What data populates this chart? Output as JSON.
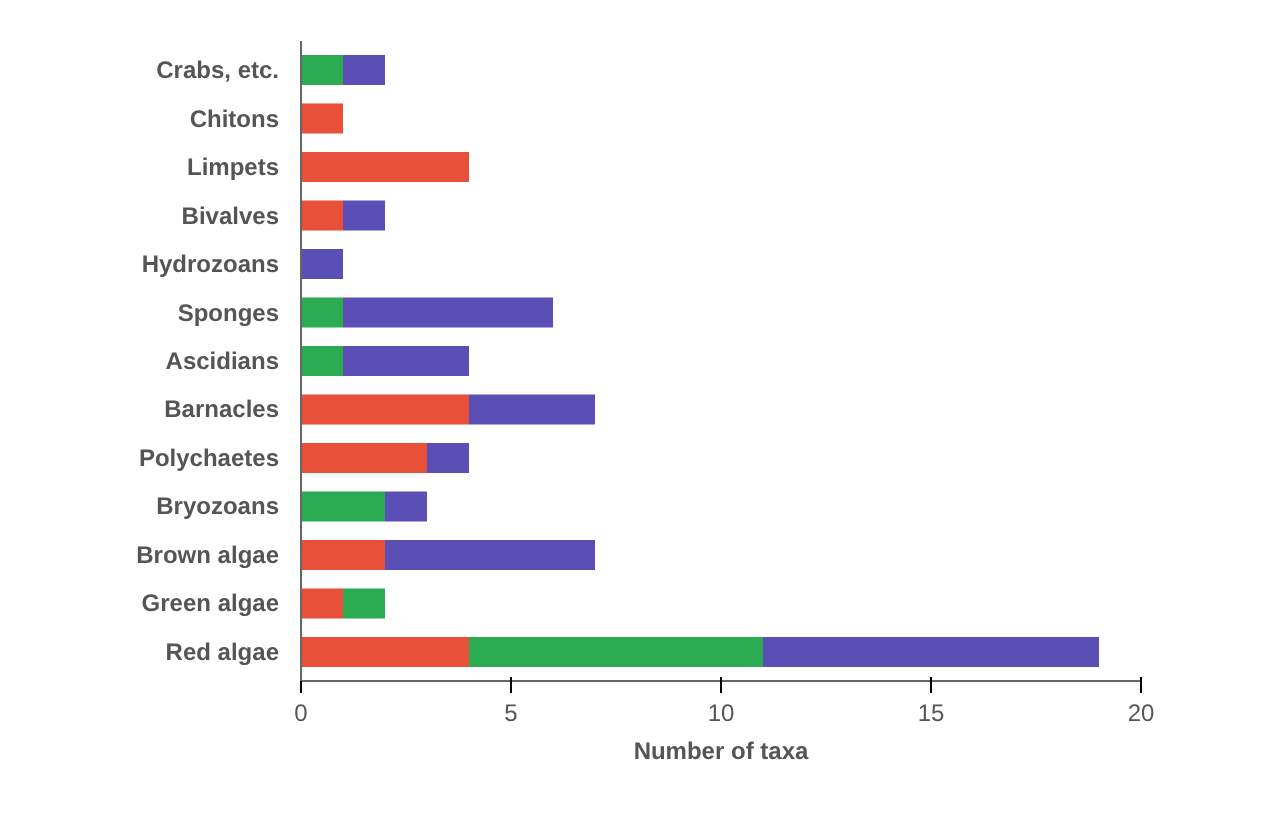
{
  "chart_data": {
    "type": "bar",
    "orientation": "horizontal",
    "stacked": true,
    "xlabel": "Number of taxa",
    "categories": [
      "Crabs, etc.",
      "Chitons",
      "Limpets",
      "Bivalves",
      "Hydrozoans",
      "Sponges",
      "Ascidians",
      "Barnacles",
      "Polychaetes",
      "Bryozoans",
      "Brown algae",
      "Green algae",
      "Red algae"
    ],
    "series": [
      {
        "color": "#e8503a",
        "values": [
          0,
          1,
          4,
          1,
          0,
          0,
          0,
          4,
          3,
          0,
          2,
          1,
          4
        ]
      },
      {
        "color": "#2bab52",
        "values": [
          1,
          0,
          0,
          0,
          0,
          1,
          1,
          0,
          0,
          2,
          0,
          1,
          7
        ]
      },
      {
        "color": "#5b4fb5",
        "values": [
          1,
          0,
          0,
          1,
          1,
          5,
          3,
          3,
          1,
          1,
          5,
          0,
          8
        ]
      }
    ],
    "xlim": [
      0,
      20
    ],
    "xticks": [
      0,
      5,
      10,
      15,
      20
    ],
    "grid": false
  }
}
